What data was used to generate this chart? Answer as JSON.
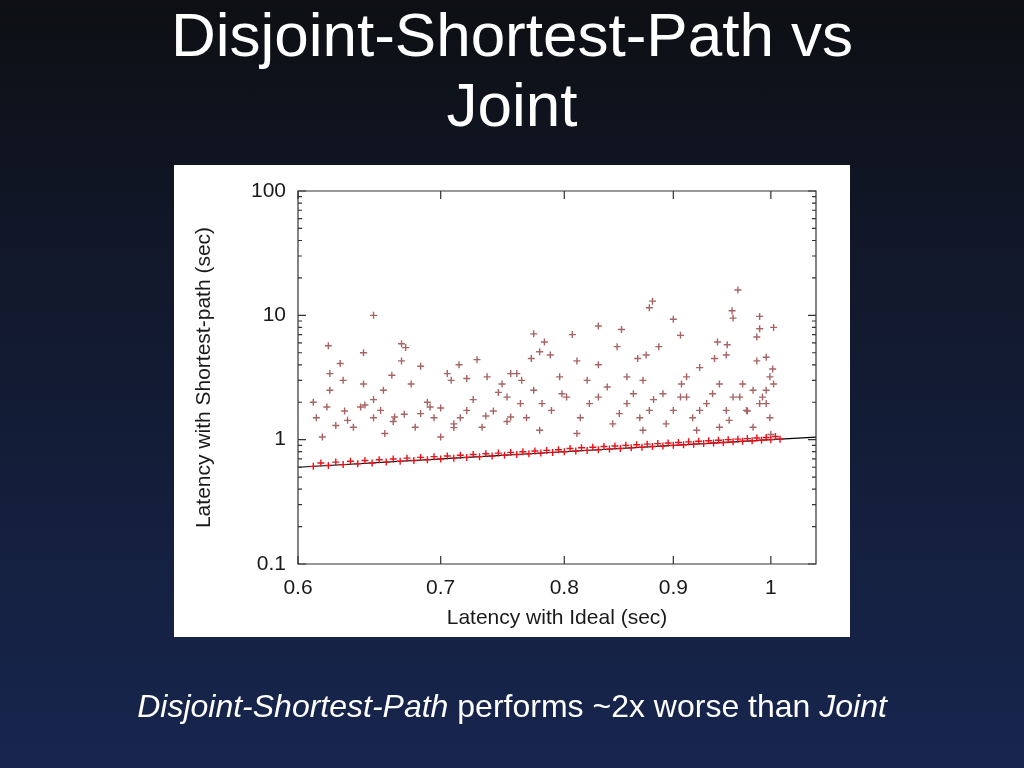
{
  "chart_data": {
    "type": "scatter",
    "title": "Disjoint-Shortest-Path vs Joint",
    "xlabel": "Latency with Ideal (sec)",
    "ylabel": "Latency with Shortest-path (sec)",
    "log": "xy",
    "marker": "cross",
    "xlim": [
      0.6,
      1.05
    ],
    "xticks": [
      0.6,
      0.7,
      0.8,
      0.9,
      1
    ],
    "ylim": [
      0.1,
      100
    ],
    "yticks": [
      0.1,
      {
        "value": 0.2,
        "label": null
      },
      {
        "value": 0.3,
        "label": null
      },
      {
        "value": 0.4,
        "label": null
      },
      {
        "value": 0.5,
        "label": null
      },
      {
        "value": 0.6,
        "label": null
      },
      {
        "value": 0.7,
        "label": null
      },
      {
        "value": 0.8,
        "label": null
      },
      {
        "value": 0.9,
        "label": null
      },
      1,
      {
        "value": 2,
        "label": null
      },
      {
        "value": 3,
        "label": null
      },
      {
        "value": 4,
        "label": null
      },
      {
        "value": 5,
        "label": null
      },
      {
        "value": 6,
        "label": null
      },
      {
        "value": 7,
        "label": null
      },
      {
        "value": 8,
        "label": null
      },
      {
        "value": 9,
        "label": null
      },
      10,
      {
        "value": 20,
        "label": null
      },
      {
        "value": 30,
        "label": null
      },
      {
        "value": 40,
        "label": null
      },
      {
        "value": 50,
        "label": null
      },
      {
        "value": 60,
        "label": null
      },
      {
        "value": 70,
        "label": null
      },
      {
        "value": 80,
        "label": null
      },
      {
        "value": 90,
        "label": null
      },
      100
    ],
    "series": [
      {
        "type": "line",
        "marker": "none",
        "color": "#000000",
        "x": [
          0.6,
          1.05
        ],
        "values": [
          0.6,
          1.05
        ]
      },
      {
        "color": "#a86464",
        "x": [
          0.651,
          0.62,
          0.644,
          0.628,
          0.621,
          0.671,
          0.674,
          0.671,
          0.685,
          0.714,
          0.728,
          0.61,
          0.621,
          0.63,
          0.644,
          0.651,
          0.658,
          0.664,
          0.678,
          0.705,
          0.708,
          0.72,
          0.736,
          0.748,
          0.755,
          0.612,
          0.616,
          0.631,
          0.637,
          0.651,
          0.659,
          0.673,
          0.681,
          0.7,
          0.7,
          0.715,
          0.725,
          0.732,
          0.741,
          0.752,
          0.965,
          0.88,
          0.877,
          0.959,
          0.96,
          0.9,
          0.988,
          0.985,
          0.988,
          1.003,
          0.907,
          0.83,
          0.851,
          0.807,
          0.774,
          0.783,
          0.779,
          0.847,
          0.886,
          0.944,
          0.954,
          0.953,
          0.788,
          0.772,
          0.811,
          0.866,
          0.874,
          0.941,
          0.985,
          0.995,
          1.002,
          0.83,
          0.76,
          0.764,
          0.871,
          0.908,
          0.946,
          0.926,
          0.913,
          0.796,
          0.82,
          0.856,
          0.752,
          0.768,
          0.781,
          0.802,
          0.814,
          0.83,
          0.843,
          0.856,
          0.868,
          0.881,
          0.893,
          0.907,
          0.919,
          0.933,
          0.946,
          0.956,
          0.967,
          0.988,
          0.995,
          0.999,
          0.981,
          0.811,
          0.871,
          0.779,
          0.923,
          0.999,
          0.991,
          0.625,
          0.645,
          0.665,
          0.69,
          0.695,
          0.71,
          0.735,
          0.745,
          0.975,
          1.0,
          0.97,
          0.755,
          0.763,
          0.774,
          0.789,
          0.798,
          0.822,
          0.838,
          0.849,
          0.862,
          0.877,
          0.89,
          0.9,
          0.913,
          0.926,
          0.939,
          0.953,
          0.96,
          0.974,
          0.981,
          0.995,
          1.003,
          0.619,
          0.633,
          0.642,
          0.656,
          0.666,
          0.685,
          0.692,
          0.71,
          0.72
        ],
        "values": [
          10,
          5.7,
          5.0,
          4.1,
          3.4,
          5.9,
          5.5,
          4.3,
          3.9,
          4.0,
          4.4,
          2.0,
          2.5,
          3.0,
          2.8,
          2.1,
          2.5,
          3.3,
          2.8,
          3.4,
          3.0,
          3.1,
          3.2,
          2.8,
          3.4,
          1.5,
          1.05,
          1.7,
          1.26,
          1.5,
          1.12,
          1.6,
          1.26,
          1.8,
          1.05,
          1.5,
          2.1,
          1.26,
          1.7,
          1.4,
          16,
          13,
          11.5,
          10.9,
          9.5,
          9.3,
          9.8,
          6.7,
          7.8,
          8.0,
          6.9,
          8.2,
          7.7,
          7.0,
          7.1,
          6.1,
          5.1,
          5.6,
          5.6,
          6.1,
          5.8,
          4.8,
          4.8,
          4.5,
          4.3,
          4.5,
          4.8,
          4.5,
          4.3,
          4.6,
          3.7,
          4.0,
          3.4,
          3.0,
          3.0,
          2.8,
          2.8,
          3.8,
          3.2,
          3.2,
          3.0,
          3.2,
          2.2,
          1.5,
          1.95,
          2.2,
          1.5,
          2.2,
          1.34,
          1.95,
          1.5,
          2.1,
          1.34,
          2.2,
          1.5,
          1.95,
          1.26,
          1.43,
          2.2,
          1.95,
          2.5,
          1.5,
          1.26,
          1.12,
          1.19,
          1.19,
          1.19,
          3.2,
          2.2,
          1.3,
          1.9,
          1.4,
          2.0,
          1.5,
          1.25,
          1.55,
          2.4,
          1.7,
          1.1,
          2.8,
          1.52,
          1.95,
          2.5,
          1.72,
          2.34,
          1.95,
          2.65,
          1.62,
          2.34,
          1.72,
          2.34,
          1.72,
          2.2,
          1.72,
          2.34,
          1.72,
          2.2,
          1.72,
          2.5,
          1.95,
          2.8,
          1.83,
          1.43,
          1.83,
          1.72,
          1.52,
          1.62,
          1.83,
          1.34,
          1.72
        ]
      },
      {
        "color": "#e8141b",
        "x": [
          0.61,
          0.615,
          0.62,
          0.625,
          0.63,
          0.635,
          0.64,
          0.645,
          0.65,
          0.655,
          0.66,
          0.665,
          0.67,
          0.675,
          0.68,
          0.685,
          0.69,
          0.695,
          0.7,
          0.705,
          0.71,
          0.715,
          0.72,
          0.725,
          0.73,
          0.735,
          0.74,
          0.745,
          0.75,
          0.755,
          0.76,
          0.765,
          0.77,
          0.775,
          0.78,
          0.785,
          0.79,
          0.795,
          0.8,
          0.805,
          0.81,
          0.815,
          0.82,
          0.825,
          0.83,
          0.835,
          0.84,
          0.845,
          0.85,
          0.855,
          0.86,
          0.865,
          0.87,
          0.875,
          0.88,
          0.885,
          0.89,
          0.895,
          0.9,
          0.905,
          0.91,
          0.915,
          0.92,
          0.925,
          0.93,
          0.935,
          0.94,
          0.945,
          0.95,
          0.955,
          0.96,
          0.965,
          0.97,
          0.975,
          0.98,
          0.985,
          0.99,
          0.995,
          1.0,
          1.005,
          1.01
        ],
        "values": [
          0.61,
          0.65,
          0.62,
          0.66,
          0.63,
          0.67,
          0.64,
          0.68,
          0.65,
          0.69,
          0.66,
          0.7,
          0.67,
          0.71,
          0.68,
          0.72,
          0.69,
          0.73,
          0.7,
          0.74,
          0.71,
          0.75,
          0.72,
          0.76,
          0.73,
          0.77,
          0.74,
          0.78,
          0.75,
          0.79,
          0.76,
          0.8,
          0.77,
          0.81,
          0.78,
          0.82,
          0.79,
          0.83,
          0.8,
          0.85,
          0.81,
          0.86,
          0.82,
          0.87,
          0.83,
          0.88,
          0.84,
          0.89,
          0.85,
          0.9,
          0.86,
          0.91,
          0.87,
          0.92,
          0.88,
          0.93,
          0.89,
          0.94,
          0.9,
          0.95,
          0.91,
          0.96,
          0.92,
          0.97,
          0.93,
          0.98,
          0.94,
          0.99,
          0.95,
          1.0,
          0.96,
          1.01,
          0.97,
          1.02,
          0.98,
          1.03,
          0.99,
          1.04,
          1.0,
          1.06,
          1.01
        ]
      }
    ],
    "annotations": [
      "Disjoint-Shortest-Path performs ~2x worse than Joint"
    ]
  }
}
